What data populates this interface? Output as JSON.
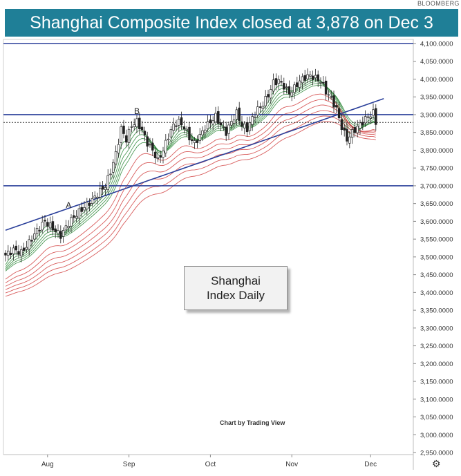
{
  "source_label": "BLOOMBERG",
  "banner_title": "Shanghai Composite Index closed at 3,878 on Dec 3",
  "note": {
    "line1": "Shanghai",
    "line2": "Index Daily"
  },
  "credit": "Chart by Trading View",
  "colors": {
    "banner": "#1f7f97",
    "blue_line": "#2a3f9a",
    "green_ma": "#2f8a3b",
    "red_ma": "#d14040",
    "candle": "#222222"
  },
  "chart_data": {
    "type": "line",
    "title": "Shanghai Composite Index closed at 3,878 on Dec 3",
    "xlabel": "",
    "ylabel": "",
    "ylim": [
      2930,
      4110
    ],
    "y_ticks": [
      4100,
      4050,
      4000,
      3950,
      3900,
      3850,
      3800,
      3750,
      3700,
      3650,
      3600,
      3550,
      3500,
      3450,
      3400,
      3350,
      3300,
      3250,
      3200,
      3150,
      3100,
      3050,
      3000,
      2950
    ],
    "y_tick_labels": [
      "4,100.0000",
      "4,050.0000",
      "4,000.0000",
      "3,950.0000",
      "3,900.0000",
      "3,850.0000",
      "3,800.0000",
      "3,750.0000",
      "3,700.0000",
      "3,650.0000",
      "3,600.0000",
      "3,550.0000",
      "3,500.0000",
      "3,450.0000",
      "3,400.0000",
      "3,350.0000",
      "3,300.0000",
      "3,250.0000",
      "3,200.0000",
      "3,150.0000",
      "3,100.0000",
      "3,050.0000",
      "3,000.0000",
      "2,950.0000"
    ],
    "x_ticks": [
      {
        "label": "Aug",
        "day": 16
      },
      {
        "label": "Sep",
        "day": 47
      },
      {
        "label": "Oct",
        "day": 78
      },
      {
        "label": "Nov",
        "day": 109
      },
      {
        "label": "Dec",
        "day": 139
      }
    ],
    "close_series": {
      "name": "Shanghai Composite",
      "points": [
        [
          0,
          3505
        ],
        [
          3,
          3520
        ],
        [
          6,
          3512
        ],
        [
          9,
          3540
        ],
        [
          12,
          3575
        ],
        [
          15,
          3600
        ],
        [
          18,
          3580
        ],
        [
          21,
          3560
        ],
        [
          24,
          3595
        ],
        [
          27,
          3620
        ],
        [
          30,
          3640
        ],
        [
          33,
          3660
        ],
        [
          36,
          3685
        ],
        [
          38,
          3700
        ],
        [
          40,
          3740
        ],
        [
          42,
          3790
        ],
        [
          44,
          3860
        ],
        [
          46,
          3830
        ],
        [
          48,
          3870
        ],
        [
          50,
          3880
        ],
        [
          52,
          3855
        ],
        [
          54,
          3820
        ],
        [
          56,
          3800
        ],
        [
          58,
          3770
        ],
        [
          60,
          3800
        ],
        [
          62,
          3840
        ],
        [
          64,
          3870
        ],
        [
          66,
          3880
        ],
        [
          68,
          3865
        ],
        [
          70,
          3835
        ],
        [
          72,
          3820
        ],
        [
          74,
          3840
        ],
        [
          76,
          3865
        ],
        [
          78,
          3880
        ],
        [
          80,
          3895
        ],
        [
          82,
          3870
        ],
        [
          84,
          3850
        ],
        [
          86,
          3880
        ],
        [
          88,
          3905
        ],
        [
          90,
          3870
        ],
        [
          92,
          3860
        ],
        [
          94,
          3890
        ],
        [
          96,
          3915
        ],
        [
          98,
          3930
        ],
        [
          100,
          3955
        ],
        [
          102,
          3990
        ],
        [
          104,
          3995
        ],
        [
          106,
          3980
        ],
        [
          108,
          3960
        ],
        [
          110,
          3975
        ],
        [
          112,
          3995
        ],
        [
          114,
          4005
        ],
        [
          116,
          4010
        ],
        [
          118,
          4002
        ],
        [
          120,
          3995
        ],
        [
          122,
          3965
        ],
        [
          124,
          3945
        ],
        [
          126,
          3915
        ],
        [
          128,
          3865
        ],
        [
          130,
          3830
        ],
        [
          132,
          3850
        ],
        [
          134,
          3865
        ],
        [
          136,
          3880
        ],
        [
          138,
          3895
        ],
        [
          140,
          3905
        ],
        [
          141,
          3878
        ]
      ]
    },
    "horizontal_lines": [
      4100,
      3900,
      3700
    ],
    "dotted_level": 3878,
    "trendline": {
      "start": [
        0,
        3575
      ],
      "end": [
        144,
        3945
      ]
    },
    "annotations": [
      {
        "text": "A",
        "day": 24,
        "value": 3638
      },
      {
        "text": "B",
        "day": 50,
        "value": 3902
      }
    ],
    "moving_averages": {
      "short_term_color": "green",
      "long_term_color": "red",
      "short_offsets": [
        -12,
        -20,
        -28,
        -36,
        -44
      ],
      "long_offsets": [
        -55,
        -70,
        -85,
        -100,
        -115,
        -130
      ]
    }
  }
}
